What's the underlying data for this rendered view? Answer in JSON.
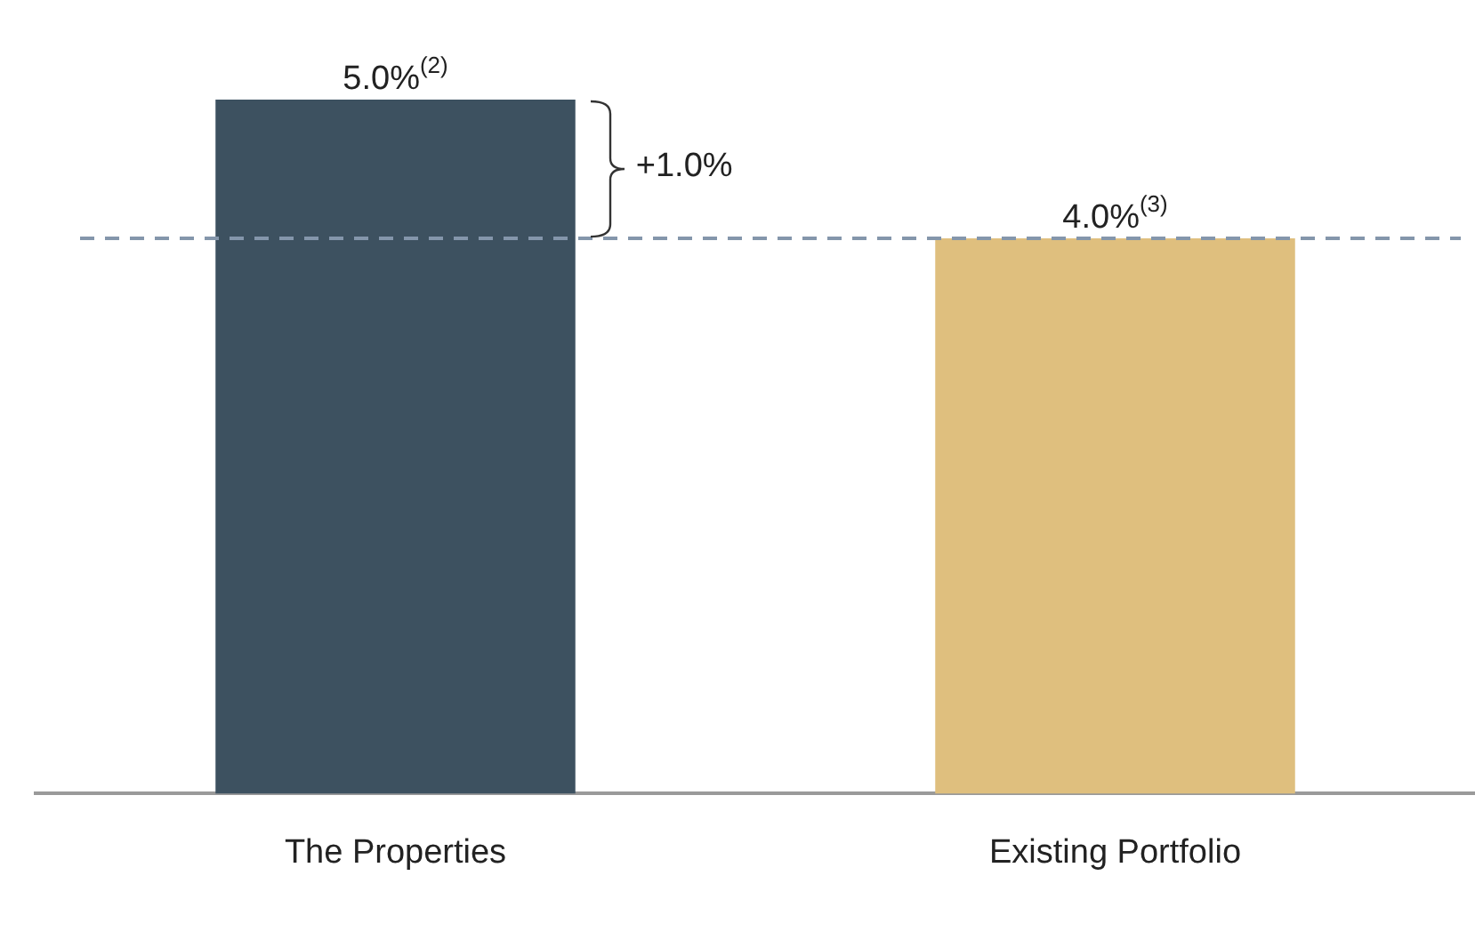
{
  "chart_data": {
    "type": "bar",
    "categories": [
      "The Properties",
      "Existing Portfolio"
    ],
    "values": [
      5.0,
      4.0
    ],
    "colors": [
      "#3d5160",
      "#dfbf7e"
    ],
    "value_labels": [
      "5.0%$^{(2)}$",
      "4.0%$^{(3)}$"
    ],
    "ref_lines": [
      {
        "axis": "y",
        "value": 4.0,
        "color": "#8496ab",
        "line_style": "dashed"
      }
    ],
    "annotations": [
      "+1.0%"
    ],
    "grid": false,
    "legend": false
  }
}
